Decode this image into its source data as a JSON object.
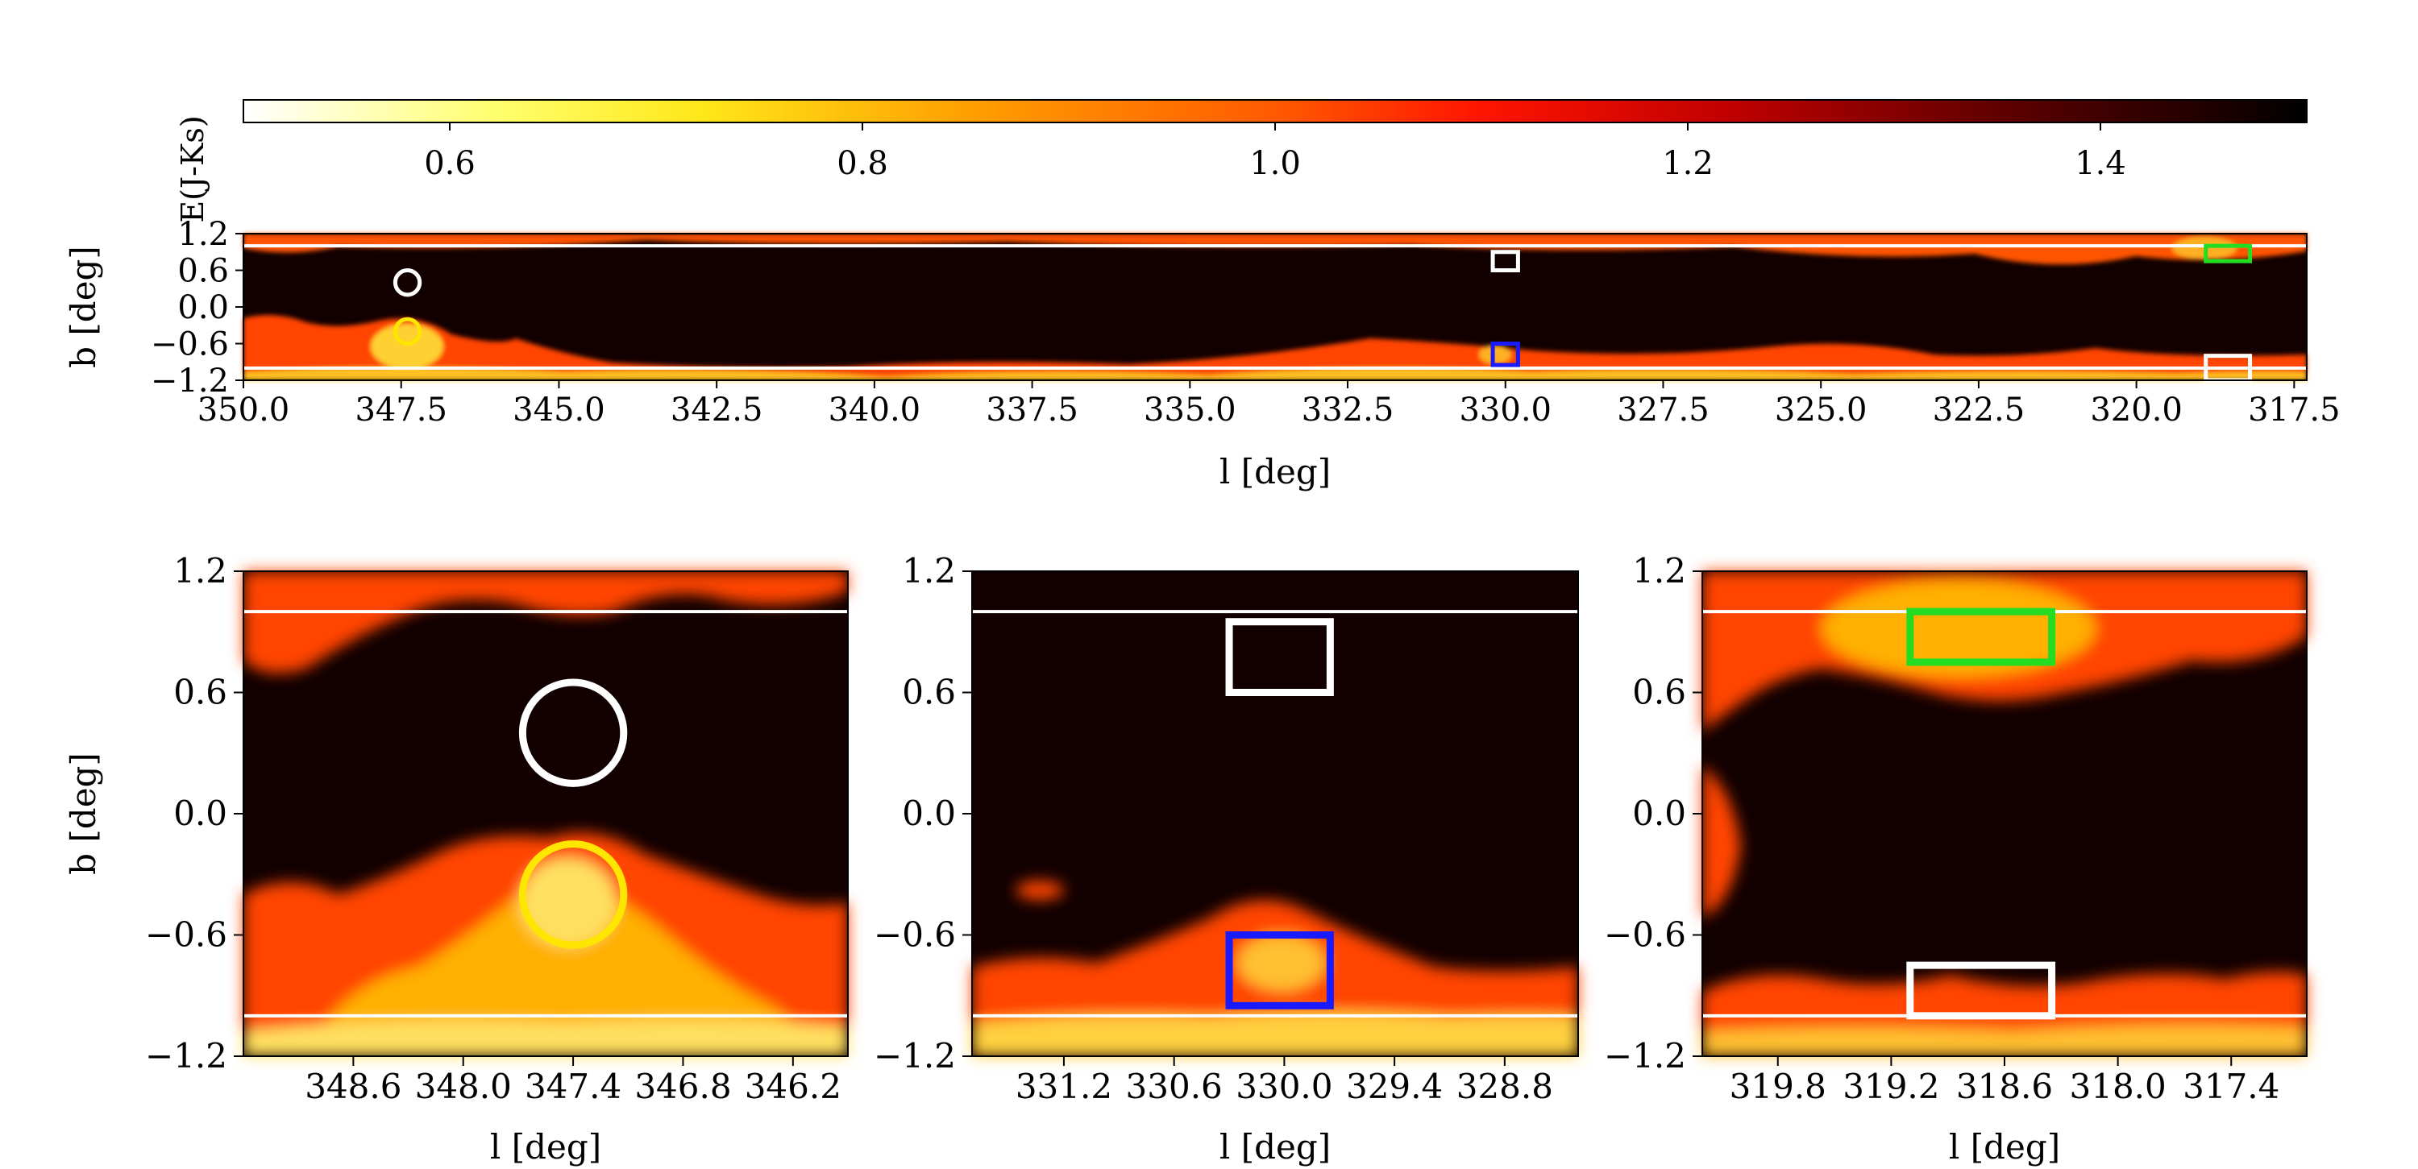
{
  "chart_data": [
    {
      "type": "colorbar",
      "label": "E(J-Ks)",
      "range": [
        0.5,
        1.5
      ],
      "ticks": [
        0.6,
        0.8,
        1.0,
        1.2,
        1.4
      ],
      "tick_labels": [
        "0.6",
        "0.8",
        "1.0",
        "1.2",
        "1.4"
      ],
      "colormap_stops": [
        {
          "v": 0.5,
          "color": "#ffffff"
        },
        {
          "v": 0.62,
          "color": "#ffff70"
        },
        {
          "v": 0.72,
          "color": "#ffe81a"
        },
        {
          "v": 0.85,
          "color": "#ffa000"
        },
        {
          "v": 1.0,
          "color": "#ff5a00"
        },
        {
          "v": 1.1,
          "color": "#ff1400"
        },
        {
          "v": 1.22,
          "color": "#c00000"
        },
        {
          "v": 1.35,
          "color": "#600000"
        },
        {
          "v": 1.5,
          "color": "#000000"
        }
      ]
    },
    {
      "type": "heatmap",
      "panel": "overview",
      "xlabel": "l [deg]",
      "ylabel": "b [deg]",
      "xlim": [
        350.0,
        317.3
      ],
      "ylim": [
        -1.2,
        1.2
      ],
      "xticks": [
        "350.0",
        "347.5",
        "345.0",
        "342.5",
        "340.0",
        "337.5",
        "335.0",
        "332.5",
        "330.0",
        "327.5",
        "325.0",
        "322.5",
        "320.0",
        "317.5"
      ],
      "yticks": [
        "1.2",
        "0.6",
        "0.0",
        "−0.6",
        "−1.2"
      ],
      "hlines_b": [
        1.0,
        -1.0
      ],
      "markers": [
        {
          "shape": "circle",
          "l": 347.4,
          "b": 0.4,
          "r": 0.2,
          "color": "#ffffff"
        },
        {
          "shape": "circle",
          "l": 347.4,
          "b": -0.4,
          "r": 0.2,
          "color": "#ffe600"
        },
        {
          "shape": "rect",
          "l": [
            330.2,
            329.8
          ],
          "b": [
            0.6,
            0.9
          ],
          "color": "#ffffff"
        },
        {
          "shape": "rect",
          "l": [
            330.2,
            329.8
          ],
          "b": [
            -0.95,
            -0.6
          ],
          "color": "#1a1aff"
        },
        {
          "shape": "rect",
          "l": [
            318.9,
            318.2
          ],
          "b": [
            0.75,
            1.0
          ],
          "color": "#22dd22"
        },
        {
          "shape": "rect",
          "l": [
            318.9,
            318.2
          ],
          "b": [
            -1.2,
            -0.8
          ],
          "color": "#ffffff"
        }
      ]
    },
    {
      "type": "heatmap",
      "panel": "zoom-347",
      "xlabel": "l [deg]",
      "ylabel": "b [deg]",
      "xlim": [
        349.2,
        345.9
      ],
      "ylim": [
        -1.2,
        1.2
      ],
      "xticks": [
        "348.6",
        "348.0",
        "347.4",
        "346.8",
        "346.2"
      ],
      "yticks": [
        "1.2",
        "0.6",
        "0.0",
        "−0.6",
        "−1.2"
      ],
      "hlines_b": [
        1.0,
        -1.0
      ],
      "markers": [
        {
          "shape": "circle",
          "l": 347.4,
          "b": 0.4,
          "r": 0.25,
          "color": "#ffffff"
        },
        {
          "shape": "circle",
          "l": 347.4,
          "b": -0.4,
          "r": 0.25,
          "color": "#ffe600"
        }
      ]
    },
    {
      "type": "heatmap",
      "panel": "zoom-330",
      "xlabel": "l [deg]",
      "ylabel": "",
      "xlim": [
        331.7,
        328.4
      ],
      "ylim": [
        -1.2,
        1.2
      ],
      "xticks": [
        "331.2",
        "330.6",
        "330.0",
        "329.4",
        "328.8"
      ],
      "yticks": [
        "1.2",
        "0.6",
        "0.0",
        "−0.6",
        "−1.2"
      ],
      "hlines_b": [
        1.0,
        -1.0
      ],
      "markers": [
        {
          "shape": "rect",
          "l": [
            330.3,
            329.75
          ],
          "b": [
            0.6,
            0.95
          ],
          "color": "#ffffff"
        },
        {
          "shape": "rect",
          "l": [
            330.3,
            329.75
          ],
          "b": [
            -0.95,
            -0.6
          ],
          "color": "#1a1aff"
        }
      ]
    },
    {
      "type": "heatmap",
      "panel": "zoom-318",
      "xlabel": "l [deg]",
      "ylabel": "",
      "xlim": [
        320.2,
        317.0
      ],
      "ylim": [
        -1.2,
        1.2
      ],
      "xticks": [
        "319.8",
        "319.2",
        "318.6",
        "318.0",
        "317.4"
      ],
      "yticks": [
        "1.2",
        "0.6",
        "0.0",
        "−0.6",
        "−1.2"
      ],
      "hlines_b": [
        1.0,
        -1.0
      ],
      "markers": [
        {
          "shape": "rect",
          "l": [
            319.1,
            318.35
          ],
          "b": [
            0.75,
            1.0
          ],
          "color": "#22dd22"
        },
        {
          "shape": "rect",
          "l": [
            319.1,
            318.35
          ],
          "b": [
            -1.0,
            -0.75
          ],
          "color": "#ffffff"
        }
      ]
    }
  ]
}
